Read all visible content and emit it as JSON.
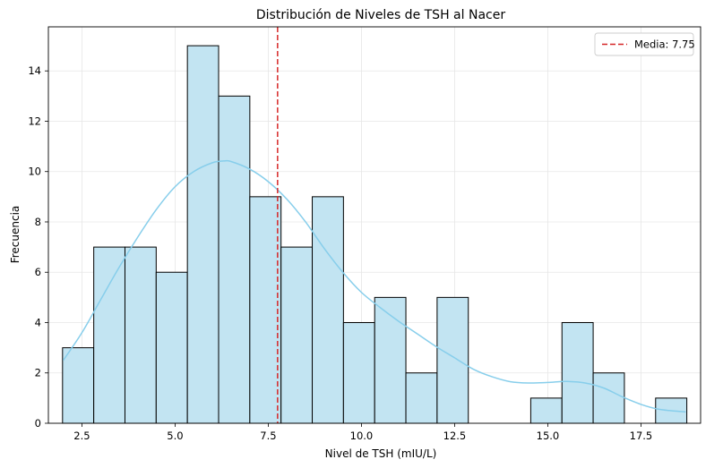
{
  "chart_data": {
    "type": "bar",
    "title": "Distribución de Niveles de TSH al Nacer",
    "xlabel": "Nivel de TSH (mIU/L)",
    "ylabel": "Frecuencia",
    "xlim": [
      1.6,
      19.1
    ],
    "ylim": [
      0,
      15.75
    ],
    "xticks": [
      2.5,
      5.0,
      7.5,
      10.0,
      12.5,
      15.0,
      17.5
    ],
    "xtick_labels": [
      "2.5",
      "5.0",
      "7.5",
      "10.0",
      "12.5",
      "15.0",
      "17.5"
    ],
    "yticks": [
      0,
      2,
      4,
      6,
      8,
      10,
      12,
      14
    ],
    "ytick_labels": [
      "0",
      "2",
      "4",
      "6",
      "8",
      "10",
      "12",
      "14"
    ],
    "grid": true,
    "bin_start": 1.98,
    "bin_width": 0.8375,
    "counts": [
      3,
      7,
      7,
      6,
      15,
      13,
      9,
      7,
      9,
      4,
      5,
      2,
      5,
      0,
      0,
      1,
      4,
      2,
      0,
      1
    ],
    "kde": {
      "x": [
        2.0,
        2.5,
        3.0,
        3.5,
        4.0,
        4.5,
        5.0,
        5.5,
        6.0,
        6.3,
        6.5,
        7.0,
        7.5,
        8.0,
        8.5,
        9.0,
        9.5,
        10.0,
        10.5,
        11.0,
        11.5,
        12.0,
        12.5,
        13.0,
        13.5,
        14.0,
        14.5,
        15.0,
        15.5,
        16.0,
        16.5,
        17.0,
        17.5,
        18.0,
        18.7
      ],
      "y": [
        2.5,
        3.6,
        4.9,
        6.2,
        7.4,
        8.5,
        9.4,
        10.0,
        10.35,
        10.42,
        10.4,
        10.1,
        9.6,
        8.9,
        8.0,
        6.95,
        6.0,
        5.2,
        4.6,
        4.05,
        3.55,
        3.05,
        2.6,
        2.15,
        1.85,
        1.65,
        1.6,
        1.62,
        1.66,
        1.6,
        1.4,
        1.05,
        0.75,
        0.55,
        0.45
      ]
    },
    "mean_line": {
      "x": 7.75,
      "label": "Media: 7.75",
      "color": "#d62728"
    },
    "colors": {
      "bar_fill": "#c2e4f2",
      "bar_edge": "#000000",
      "kde": "#87ceeb",
      "grid": "#e6e6e6"
    },
    "legend": {
      "position": "top-right"
    }
  }
}
